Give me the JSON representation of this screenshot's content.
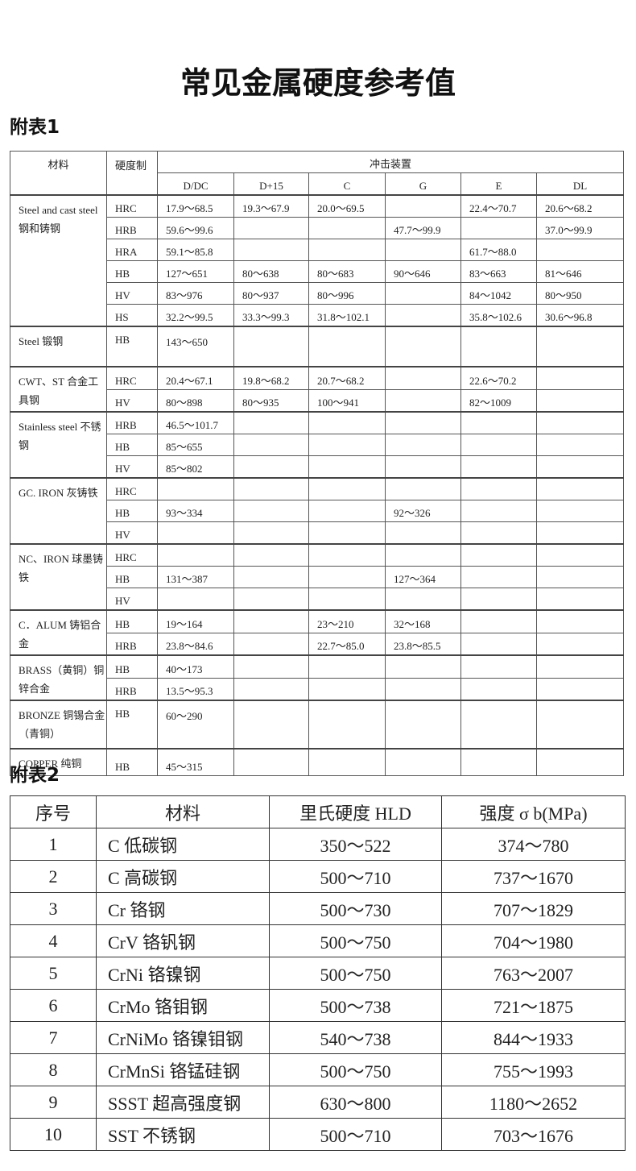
{
  "title": "常见金属硬度参考值",
  "table1": {
    "label": "附表1",
    "header": {
      "material": "材料",
      "hardness": "硬度制",
      "impact": "冲击装置",
      "devices": [
        "D/DC",
        "D+15",
        "C",
        "G",
        "E",
        "DL"
      ]
    },
    "groups": [
      {
        "material": "Steel and cast steel 钢和铸钢",
        "rows": [
          [
            "HRC",
            "17.9～68.5",
            "19.3～67.9",
            "20.0～69.5",
            "",
            "22.4～70.7",
            "20.6～68.2"
          ],
          [
            "HRB",
            "59.6～99.6",
            "",
            "",
            "47.7～99.9",
            "",
            "37.0～99.9"
          ],
          [
            "HRA",
            "59.1～85.8",
            "",
            "",
            "",
            "61.7～88.0",
            ""
          ],
          [
            "HB",
            "127～651",
            "80～638",
            "80～683",
            "90～646",
            "83～663",
            "81～646"
          ],
          [
            "HV",
            "83～976",
            "80～937",
            "80～996",
            "",
            "84～1042",
            "80～950"
          ],
          [
            "HS",
            "32.2～99.5",
            "33.3～99.3",
            "31.8～102.1",
            "",
            "35.8～102.6",
            "30.6～96.8"
          ]
        ]
      },
      {
        "material": "Steel 锻钢",
        "tall": true,
        "rows": [
          [
            "HB",
            "143～650",
            "",
            "",
            "",
            "",
            ""
          ]
        ]
      },
      {
        "material": "CWT、ST 合金工具钢",
        "rows": [
          [
            "HRC",
            "20.4～67.1",
            "19.8～68.2",
            "20.7～68.2",
            "",
            "22.6～70.2",
            ""
          ],
          [
            "HV",
            "80～898",
            "80～935",
            "100～941",
            "",
            "82～1009",
            ""
          ]
        ]
      },
      {
        "material": "Stainless steel 不锈钢",
        "rows": [
          [
            "HRB",
            "46.5～101.7",
            "",
            "",
            "",
            "",
            ""
          ],
          [
            "HB",
            "85～655",
            "",
            "",
            "",
            "",
            ""
          ],
          [
            "HV",
            "85～802",
            "",
            "",
            "",
            "",
            ""
          ]
        ]
      },
      {
        "material": "GC. IRON 灰铸铁",
        "rows": [
          [
            "HRC",
            "",
            "",
            "",
            "",
            "",
            ""
          ],
          [
            "HB",
            "93～334",
            "",
            "",
            "92～326",
            "",
            ""
          ],
          [
            "HV",
            "",
            "",
            "",
            "",
            "",
            ""
          ]
        ]
      },
      {
        "material": "NC、IRON 球墨铸铁",
        "rows": [
          [
            "HRC",
            "",
            "",
            "",
            "",
            "",
            ""
          ],
          [
            "HB",
            "131～387",
            "",
            "",
            "127～364",
            "",
            ""
          ],
          [
            "HV",
            "",
            "",
            "",
            "",
            "",
            ""
          ]
        ]
      },
      {
        "material": "C．ALUM 铸铝合金",
        "rows": [
          [
            "HB",
            "19～164",
            "",
            "23～210",
            "32～168",
            "",
            ""
          ],
          [
            "HRB",
            "23.8～84.6",
            "",
            "22.7～85.0",
            "23.8～85.5",
            "",
            ""
          ]
        ]
      },
      {
        "material": "BRASS（黄铜）铜锌合金",
        "rows": [
          [
            "HB",
            "40～173",
            "",
            "",
            "",
            "",
            ""
          ],
          [
            "HRB",
            "13.5～95.3",
            "",
            "",
            "",
            "",
            ""
          ]
        ]
      },
      {
        "material": "BRONZE 铜锡合金（青铜）",
        "tall2": true,
        "rows": [
          [
            "HB",
            "60～290",
            "",
            "",
            "",
            "",
            ""
          ]
        ]
      },
      {
        "material": "COPPER 纯铜",
        "rows": [
          [
            "HB",
            "45～315",
            "",
            "",
            "",
            "",
            ""
          ]
        ]
      }
    ]
  },
  "table2": {
    "label": "附表2",
    "header": [
      "序号",
      "材料",
      "里氏硬度 HLD",
      "强度 σ b(MPa)"
    ],
    "rows": [
      [
        "1",
        "C 低碳钢",
        "350～522",
        "374～780"
      ],
      [
        "2",
        "C 高碳钢",
        "500～710",
        "737～1670"
      ],
      [
        "3",
        "Cr 铬钢",
        "500～730",
        "707～1829"
      ],
      [
        "4",
        "CrV 铬钒钢",
        "500～750",
        "704～1980"
      ],
      [
        "5",
        "CrNi 铬镍钢",
        "500～750",
        "763～2007"
      ],
      [
        "6",
        "CrMo 铬钼钢",
        "500～738",
        "721～1875"
      ],
      [
        "7",
        "CrNiMo 铬镍钼钢",
        "540～738",
        "844～1933"
      ],
      [
        "8",
        "CrMnSi 铬锰硅钢",
        "500～750",
        "755～1993"
      ],
      [
        "9",
        "SSST 超高强度钢",
        "630～800",
        "1180～2652"
      ],
      [
        "10",
        "SST 不锈钢",
        "500～710",
        "703～1676"
      ]
    ]
  }
}
